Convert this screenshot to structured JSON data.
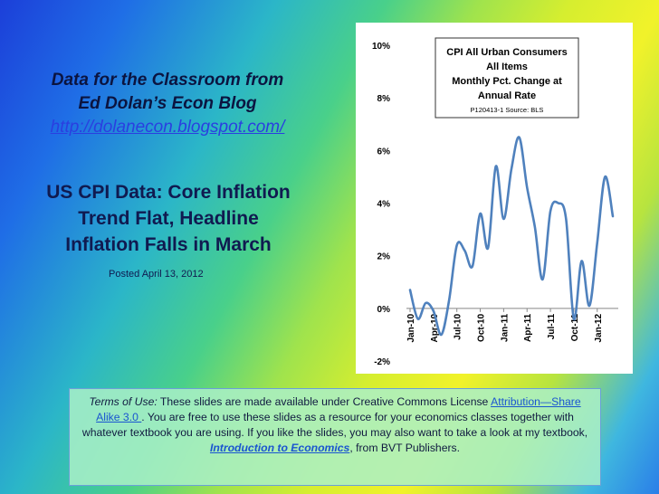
{
  "slide": {
    "blog_line1": "Data for the Classroom from",
    "blog_line2": "Ed Dolan’s Econ Blog",
    "blog_url": "http://dolanecon.blogspot.com/",
    "headline_line1": "US CPI Data: Core Inflation",
    "headline_line2": "Trend Flat, Headline",
    "headline_line3": "Inflation Falls in March",
    "posted": "Posted  April 13, 2012"
  },
  "terms": {
    "label": "Terms of Use:",
    "text1": " These slides are made available under Creative Commons License ",
    "license_link": "Attribution—Share Alike 3.0 ",
    "text2": ". You are free to use these slides as a resource for your economics classes together with whatever textbook you are using. If you like the slides, you may also want to take a look at my textbook, ",
    "book_link": "Introduction to Economics",
    "text3": ", from BVT Publishers."
  },
  "chart_data": {
    "type": "line",
    "title_lines": [
      "CPI All Urban Consumers",
      "All Items",
      "Monthly Pct. Change at",
      "Annual Rate"
    ],
    "source": "P120413-1 Source: BLS",
    "ylim": [
      -2,
      10
    ],
    "y_ticks": [
      "-2%",
      "0%",
      "2%",
      "4%",
      "6%",
      "8%",
      "10%"
    ],
    "x_ticks": [
      "Jan-10",
      "Apr-10",
      "Jul-10",
      "Oct-10",
      "Jan-11",
      "Apr-11",
      "Jul-11",
      "Oct-11",
      "Jan-12"
    ],
    "grid": false,
    "color": "#4f81bd",
    "series": [
      {
        "x": [
          "Jan-10",
          "Feb-10",
          "Mar-10",
          "Apr-10",
          "May-10",
          "Jun-10",
          "Jul-10",
          "Aug-10",
          "Sep-10",
          "Oct-10",
          "Nov-10",
          "Dec-10",
          "Jan-11",
          "Feb-11",
          "Mar-11",
          "Apr-11",
          "May-11",
          "Jun-11",
          "Jul-11",
          "Aug-11",
          "Sep-11",
          "Oct-11",
          "Nov-11",
          "Dec-11",
          "Jan-12",
          "Feb-12",
          "Mar-12"
        ],
        "values": [
          0.7,
          -0.4,
          0.2,
          -0.1,
          -1.0,
          0.3,
          2.4,
          2.2,
          1.6,
          3.6,
          2.3,
          5.4,
          3.4,
          5.3,
          6.5,
          4.6,
          3.1,
          1.1,
          3.7,
          4.0,
          3.4,
          -0.4,
          1.8,
          0.1,
          2.5,
          5.0,
          3.5
        ]
      }
    ]
  }
}
